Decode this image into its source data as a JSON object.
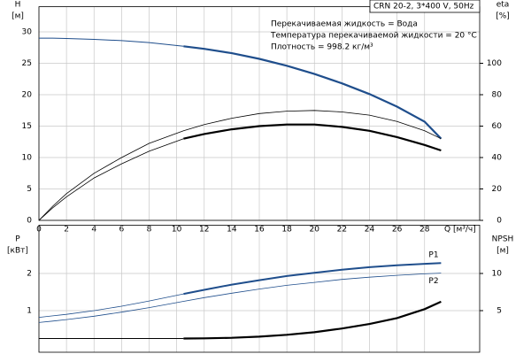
{
  "chart_data": [
    {
      "type": "line",
      "box": "CRN 20-2, 3*400 V, 50Hz",
      "notes": [
        "Перекачиваемая жидкость = Вода",
        "Температура перекачиваемой жидкости = 20 °C",
        "Плотность = 998.2 кг/м³"
      ],
      "ylabel": "H",
      "yunit": "[м]",
      "y2label": "eta",
      "y2unit": "[%]",
      "xlabel": "Q [м³/ч]",
      "xlim": [
        0,
        32
      ],
      "ylim": [
        0,
        34
      ],
      "y2lim": [
        0,
        136
      ],
      "xticks": [
        0,
        2,
        4,
        6,
        8,
        10,
        12,
        14,
        16,
        18,
        20,
        22,
        24,
        26,
        28
      ],
      "yticks": [
        0,
        5,
        10,
        15,
        20,
        25,
        30
      ],
      "y2ticks": [
        0,
        20,
        40,
        60,
        80,
        100
      ],
      "grid": true,
      "x": [
        0,
        1,
        2,
        4,
        6,
        8,
        10.5,
        12,
        14,
        16,
        18,
        20,
        22,
        24,
        26,
        28,
        29.2
      ],
      "series": [
        {
          "color": "#1f4e8c",
          "linewidth": 1,
          "values": [
            29,
            29,
            28.95,
            28.8,
            28.6,
            28.3,
            27.7,
            null,
            null,
            null,
            null,
            null,
            null,
            null,
            null,
            null,
            null
          ]
        },
        {
          "color": "#1f4e8c",
          "linewidth": 2.2,
          "values": [
            null,
            null,
            null,
            null,
            null,
            null,
            27.7,
            27.3,
            26.6,
            25.7,
            24.6,
            23.3,
            21.8,
            20.1,
            18.1,
            15.7,
            13
          ]
        },
        {
          "color": "#000000",
          "linewidth": 0.8,
          "axis": "y2",
          "values": [
            0,
            9,
            17,
            30,
            40,
            49,
            57,
            61,
            65,
            68,
            69.5,
            70,
            69,
            67,
            63,
            57,
            52
          ]
        },
        {
          "color": "#000000",
          "linewidth": 0.8,
          "axis": "y2",
          "values": [
            0,
            8,
            15,
            27,
            36,
            44,
            52,
            null,
            null,
            null,
            null,
            null,
            null,
            null,
            null,
            null,
            null
          ]
        },
        {
          "color": "#000000",
          "linewidth": 2.2,
          "axis": "y2",
          "values": [
            null,
            null,
            null,
            null,
            null,
            null,
            52,
            55,
            58,
            60,
            61,
            61,
            59.5,
            57,
            53,
            48,
            44.5
          ]
        }
      ]
    },
    {
      "type": "line",
      "ylabel": "P",
      "yunit": "[кВт]",
      "y2label": "NPSH",
      "y2unit": "[м]",
      "xlim": [
        0,
        32
      ],
      "ylim": [
        0,
        3.3
      ],
      "y2lim": [
        0,
        16.5
      ],
      "xticks": [
        0,
        2,
        4,
        6,
        8,
        10,
        12,
        14,
        16,
        18,
        20,
        22,
        24,
        26,
        28
      ],
      "yticks": [
        1,
        2
      ],
      "y2ticks": [
        5,
        10
      ],
      "grid": true,
      "x": [
        0,
        1,
        2,
        4,
        6,
        8,
        10.5,
        12,
        14,
        16,
        18,
        20,
        22,
        24,
        26,
        28,
        29.2
      ],
      "series": [
        {
          "color": "#1f4e8c",
          "linewidth": 0.8,
          "values": [
            0.82,
            0.86,
            0.9,
            1.0,
            1.12,
            1.26,
            1.45,
            null,
            null,
            null,
            null,
            null,
            null,
            null,
            null,
            null,
            null
          ]
        },
        {
          "name": "P1",
          "color": "#1f4e8c",
          "linewidth": 2,
          "values": [
            null,
            null,
            null,
            null,
            null,
            null,
            1.45,
            1.56,
            1.7,
            1.82,
            1.93,
            2.02,
            2.1,
            2.17,
            2.22,
            2.26,
            2.28
          ]
        },
        {
          "name": "P2",
          "color": "#1f4e8c",
          "linewidth": 0.8,
          "values": [
            0.68,
            0.72,
            0.76,
            0.85,
            0.96,
            1.08,
            1.25,
            1.35,
            1.47,
            1.58,
            1.68,
            1.76,
            1.84,
            1.9,
            1.95,
            1.99,
            2.01
          ]
        },
        {
          "color": "#000000",
          "linewidth": 1,
          "axis": "y2",
          "values": [
            1.25,
            1.25,
            1.25,
            1.25,
            1.25,
            1.25,
            1.25,
            null,
            null,
            null,
            null,
            null,
            null,
            null,
            null,
            null,
            null
          ]
        },
        {
          "color": "#000000",
          "linewidth": 2.2,
          "axis": "y2",
          "values": [
            null,
            null,
            null,
            null,
            null,
            null,
            1.25,
            1.27,
            1.35,
            1.5,
            1.75,
            2.1,
            2.6,
            3.2,
            4.0,
            5.2,
            6.2
          ]
        }
      ]
    }
  ]
}
